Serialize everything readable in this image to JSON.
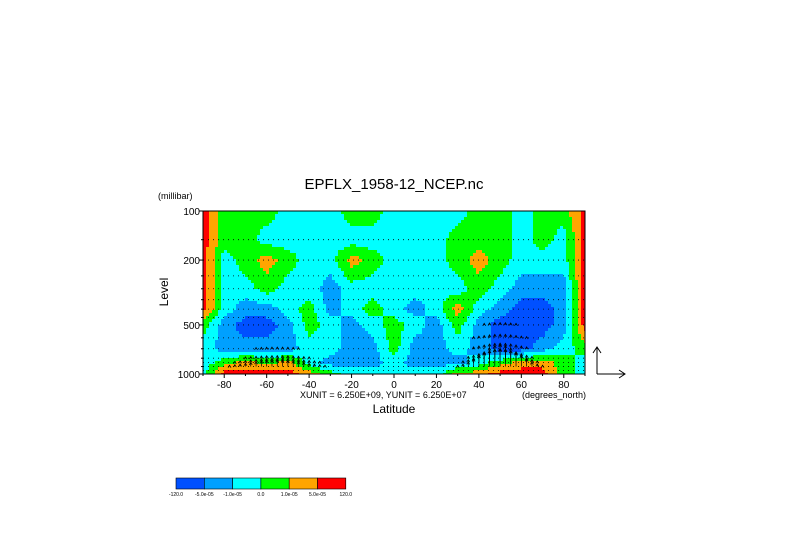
{
  "chart_data": {
    "type": "heatmap",
    "title": "EPFLX_1958-12_NCEP.nc",
    "xlabel": "Latitude",
    "ylabel": "Level",
    "yunit": "(millibar)",
    "xunit_label": "(degrees_north)",
    "vector_scale": "XUNIT = 6.250E+09, YUNIT = 6.250E+07",
    "xlim": [
      -90,
      90
    ],
    "ylim": [
      1000,
      100
    ],
    "y_scale": "log",
    "x_ticks": [
      -80,
      -60,
      -40,
      -20,
      0,
      20,
      40,
      60,
      80
    ],
    "x_tick_labels": [
      "-80",
      "-60",
      "-40",
      "-20",
      "0",
      "20",
      "40",
      "60",
      "80"
    ],
    "y_ticks": [
      100,
      200,
      500,
      1000
    ],
    "y_tick_labels": [
      "100",
      "200",
      "500",
      "1000"
    ],
    "grid": "dotted horizontal lines at vector levels",
    "colorbar": {
      "colors": [
        "#0050ff",
        "#00a0ff",
        "#00ffff",
        "#00ff00",
        "#ffa500",
        "#ff0000"
      ],
      "boundaries": [
        "-120.0",
        "-5.0e-05",
        "-1.0e-05",
        "0.0",
        "1.0e-05",
        "5.0e-05",
        "120.0"
      ]
    },
    "levels": [
      100,
      150,
      200,
      250,
      300,
      350,
      400,
      450,
      500,
      600,
      700,
      800,
      850,
      900,
      950,
      1000
    ],
    "contour_field": {
      "latitudes": [
        -90,
        -80,
        -70,
        -60,
        -50,
        -40,
        -30,
        -20,
        -10,
        0,
        10,
        20,
        30,
        40,
        50,
        60,
        70,
        80,
        90
      ],
      "pressures": [
        100,
        150,
        200,
        300,
        400,
        500,
        700,
        850,
        1000
      ],
      "class_index": [
        [
          5,
          3,
          3,
          3,
          2,
          2,
          2,
          3,
          3,
          2,
          2,
          2,
          2,
          3,
          3,
          2,
          3,
          3,
          5
        ],
        [
          5,
          3,
          3,
          2,
          2,
          2,
          2,
          2,
          2,
          2,
          2,
          2,
          3,
          3,
          3,
          2,
          3,
          2,
          5
        ],
        [
          5,
          2,
          3,
          4,
          3,
          2,
          2,
          4,
          3,
          2,
          2,
          2,
          3,
          4,
          3,
          2,
          2,
          2,
          5
        ],
        [
          5,
          2,
          2,
          3,
          2,
          2,
          1,
          2,
          2,
          2,
          2,
          2,
          2,
          3,
          2,
          1,
          1,
          1,
          5
        ],
        [
          5,
          2,
          1,
          1,
          2,
          3,
          1,
          2,
          3,
          2,
          1,
          2,
          4,
          2,
          1,
          0,
          0,
          1,
          5
        ],
        [
          3,
          1,
          0,
          0,
          1,
          3,
          2,
          1,
          2,
          3,
          2,
          1,
          3,
          1,
          0,
          0,
          0,
          1,
          5
        ],
        [
          2,
          1,
          1,
          1,
          1,
          2,
          2,
          1,
          1,
          3,
          1,
          1,
          2,
          1,
          0,
          0,
          1,
          2,
          3
        ],
        [
          2,
          3,
          4,
          3,
          4,
          2,
          1,
          1,
          1,
          2,
          1,
          1,
          1,
          2,
          3,
          4,
          4,
          3,
          2
        ],
        [
          2,
          5,
          5,
          5,
          5,
          4,
          3,
          2,
          2,
          2,
          2,
          2,
          4,
          4,
          5,
          5,
          5,
          3,
          2
        ]
      ]
    },
    "vectors": {
      "arrow_levels": [
        900,
        850,
        800,
        700,
        600,
        500
      ],
      "arrow_peak_latitude": 50,
      "arrow_peak_fy": 1.0,
      "secondary_peak_latitude": -55,
      "secondary_peak_fy": 0.3
    }
  }
}
